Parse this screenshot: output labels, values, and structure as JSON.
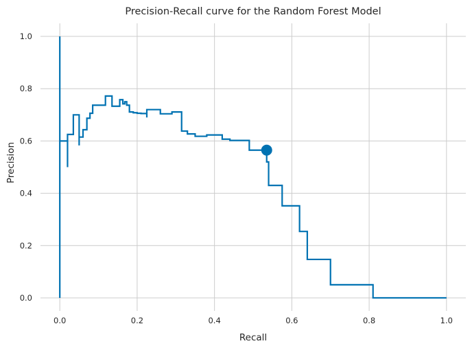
{
  "chart_data": {
    "type": "line",
    "title": "Precision-Recall curve for the Random Forest Model",
    "xlabel": "Recall",
    "ylabel": "Precision",
    "xlim": [
      -0.05,
      1.05
    ],
    "ylim": [
      -0.05,
      1.05
    ],
    "x_ticks": [
      0.0,
      0.2,
      0.4,
      0.6,
      0.8,
      1.0
    ],
    "x_tick_labels": [
      "0.0",
      "0.2",
      "0.4",
      "0.6",
      "0.8",
      "1.0"
    ],
    "y_ticks": [
      0.0,
      0.2,
      0.4,
      0.6,
      0.8,
      1.0
    ],
    "y_tick_labels": [
      "0.0",
      "0.2",
      "0.4",
      "0.6",
      "0.8",
      "1.0"
    ],
    "grid": true,
    "line_color": "#0072b2",
    "background_color": "#ffffff",
    "grid_color": "#cccccc",
    "series": [
      {
        "step": "post",
        "x": [
          0.0,
          0.0,
          0.0,
          0.02,
          0.02,
          0.02,
          0.035,
          0.035,
          0.05,
          0.05,
          0.05,
          0.053,
          0.06,
          0.07,
          0.078,
          0.085,
          0.1,
          0.118,
          0.135,
          0.155,
          0.163,
          0.168,
          0.173,
          0.18,
          0.19,
          0.2,
          0.21,
          0.22,
          0.225,
          0.225,
          0.26,
          0.29,
          0.315,
          0.33,
          0.35,
          0.38,
          0.42,
          0.44,
          0.47,
          0.49,
          0.535,
          0.535,
          0.54,
          0.56,
          0.575,
          0.62,
          0.64,
          0.7,
          0.81,
          0.81,
          1.0
        ],
        "y": [
          0.0,
          1.0,
          0.6,
          0.6,
          0.5,
          0.625,
          0.625,
          0.7,
          0.7,
          0.583,
          0.615,
          0.615,
          0.643,
          0.687,
          0.706,
          0.737,
          0.737,
          0.772,
          0.733,
          0.758,
          0.742,
          0.75,
          0.737,
          0.711,
          0.708,
          0.706,
          0.705,
          0.705,
          0.69,
          0.72,
          0.704,
          0.711,
          0.638,
          0.627,
          0.618,
          0.623,
          0.607,
          0.602,
          0.602,
          0.565,
          0.565,
          0.52,
          0.43,
          0.43,
          0.352,
          0.254,
          0.147,
          0.05,
          0.05,
          0.0,
          0.0
        ]
      }
    ],
    "marker": {
      "x": 0.535,
      "y": 0.565
    }
  }
}
